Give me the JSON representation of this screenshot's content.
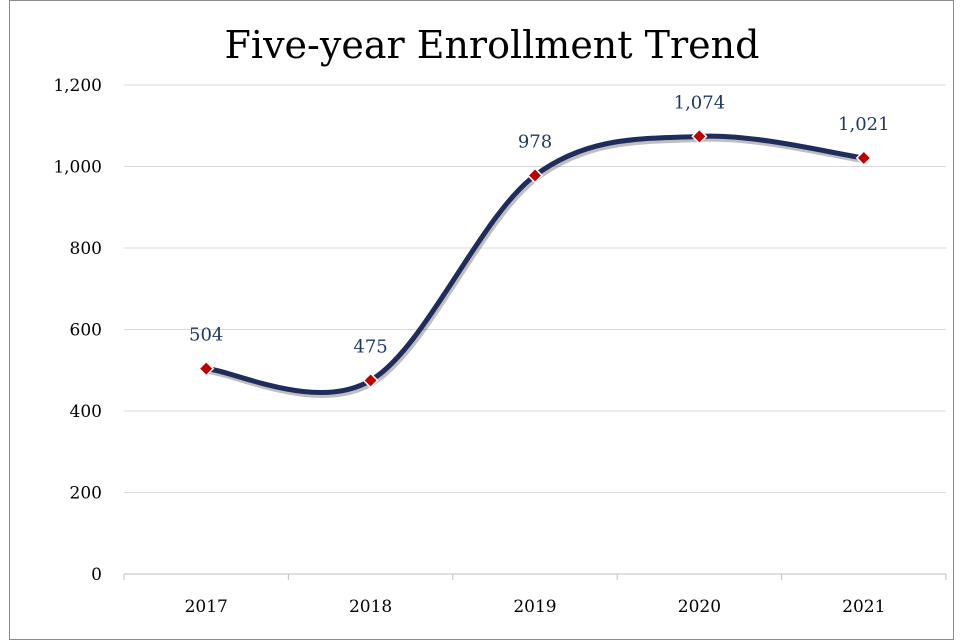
{
  "chart_data": {
    "type": "line",
    "title": "Five-year Enrollment Trend",
    "categories": [
      "2017",
      "2018",
      "2019",
      "2020",
      "2021"
    ],
    "series": [
      {
        "values": [
          504,
          475,
          978,
          1074,
          1021
        ]
      }
    ],
    "data_labels": [
      "504",
      "475",
      "978",
      "1,074",
      "1,021"
    ],
    "y_ticks": [
      "0",
      "200",
      "400",
      "600",
      "800",
      "1,000",
      "1,200"
    ],
    "y_tick_values": [
      0,
      200,
      400,
      600,
      800,
      1000,
      1200
    ],
    "ylim": [
      0,
      1200
    ],
    "smooth": true,
    "grid": true,
    "line_color": "#1f2d5c",
    "marker": "diamond",
    "marker_color": "#c00000",
    "gridline_color": "#d9d9d9",
    "data_label_color": "#1f3864"
  }
}
